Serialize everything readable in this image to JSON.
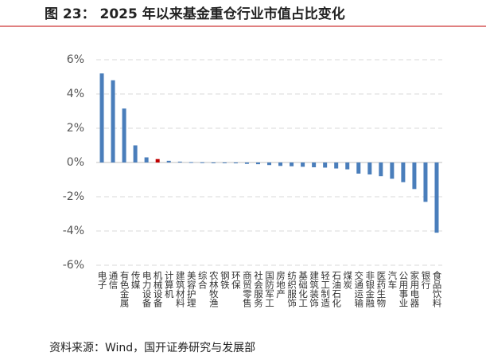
{
  "chart_data": {
    "type": "bar",
    "title": "图 23： 2025 年以来基金重仓行业市值占比变化",
    "source": "资料来源：Wind，国开证券研究与发展部",
    "categories": [
      "电子",
      "通信",
      "有色金属",
      "传媒",
      "电力设备",
      "机械设备",
      "计算机",
      "建筑材料",
      "美容护理",
      "综合",
      "农林牧渔",
      "钢铁",
      "环保",
      "商贸零售",
      "社会服务",
      "国防军工",
      "房地产",
      "纺织服饰",
      "基础化工",
      "建筑装饰",
      "轻工制造",
      "石油石化",
      "煤炭",
      "交通运输",
      "非银金融",
      "医药生物",
      "汽车",
      "公用事业",
      "家用电器",
      "银行",
      "食品饮料"
    ],
    "values": [
      5.2,
      4.8,
      3.15,
      1.0,
      0.3,
      0.2,
      0.1,
      0.05,
      0.02,
      0.01,
      0,
      0,
      -0.05,
      -0.08,
      -0.1,
      -0.15,
      -0.2,
      -0.22,
      -0.25,
      -0.28,
      -0.3,
      -0.35,
      -0.4,
      -0.65,
      -0.7,
      -0.8,
      -0.95,
      -1.15,
      -1.55,
      -2.3,
      -4.1
    ],
    "color": "#4a7ebb",
    "highlight": {
      "index": 5,
      "color": "#c00000"
    },
    "ylim": [
      -6,
      6
    ],
    "yticks": [
      {
        "value": -6,
        "label": "-6%"
      },
      {
        "value": -4,
        "label": "-4%"
      },
      {
        "value": -2,
        "label": "-2%"
      },
      {
        "value": 0,
        "label": "0%"
      },
      {
        "value": 2,
        "label": "2%"
      },
      {
        "value": 4,
        "label": "4%"
      },
      {
        "value": 6,
        "label": "6%"
      }
    ],
    "grid": true
  }
}
